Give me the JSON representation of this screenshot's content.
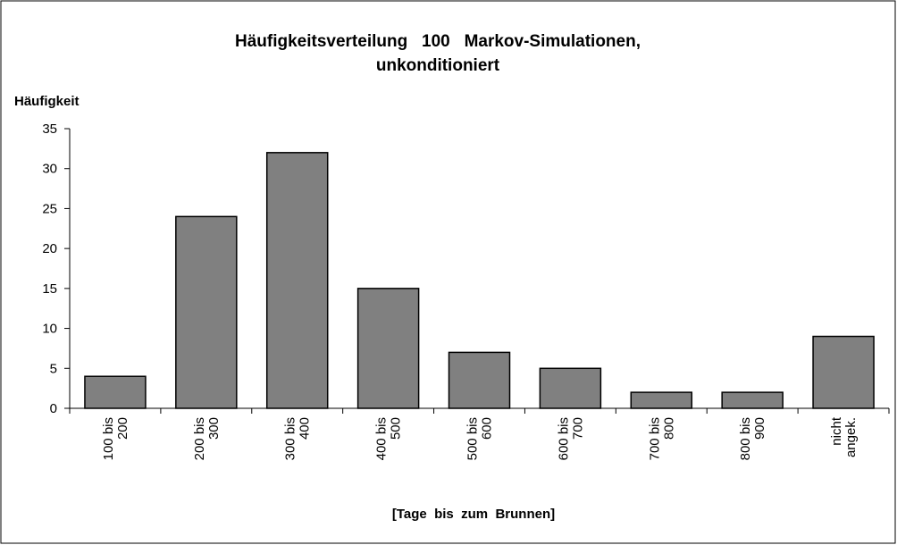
{
  "chart_data": {
    "type": "bar",
    "title": [
      "Häufigkeitsverteilung   100   Markov-Simulationen,",
      "unkonditioniert"
    ],
    "y_label": "Häufigkeit",
    "x_label": "[Tage  bis  zum  Brunnen]",
    "categories": [
      [
        "100 bis",
        "200"
      ],
      [
        "200 bis",
        "300"
      ],
      [
        "300 bis",
        "400"
      ],
      [
        "400 bis",
        "500"
      ],
      [
        "500 bis",
        "600"
      ],
      [
        "600 bis",
        "700"
      ],
      [
        "700 bis",
        "800"
      ],
      [
        "800 bis",
        "900"
      ],
      [
        "nicht",
        "angek."
      ]
    ],
    "values": [
      4,
      24,
      32,
      15,
      7,
      5,
      2,
      2,
      9
    ],
    "color": "#808080",
    "ylim": [
      0,
      35
    ],
    "yticks": [
      0,
      5,
      10,
      15,
      20,
      25,
      30,
      35
    ],
    "grid": false
  }
}
